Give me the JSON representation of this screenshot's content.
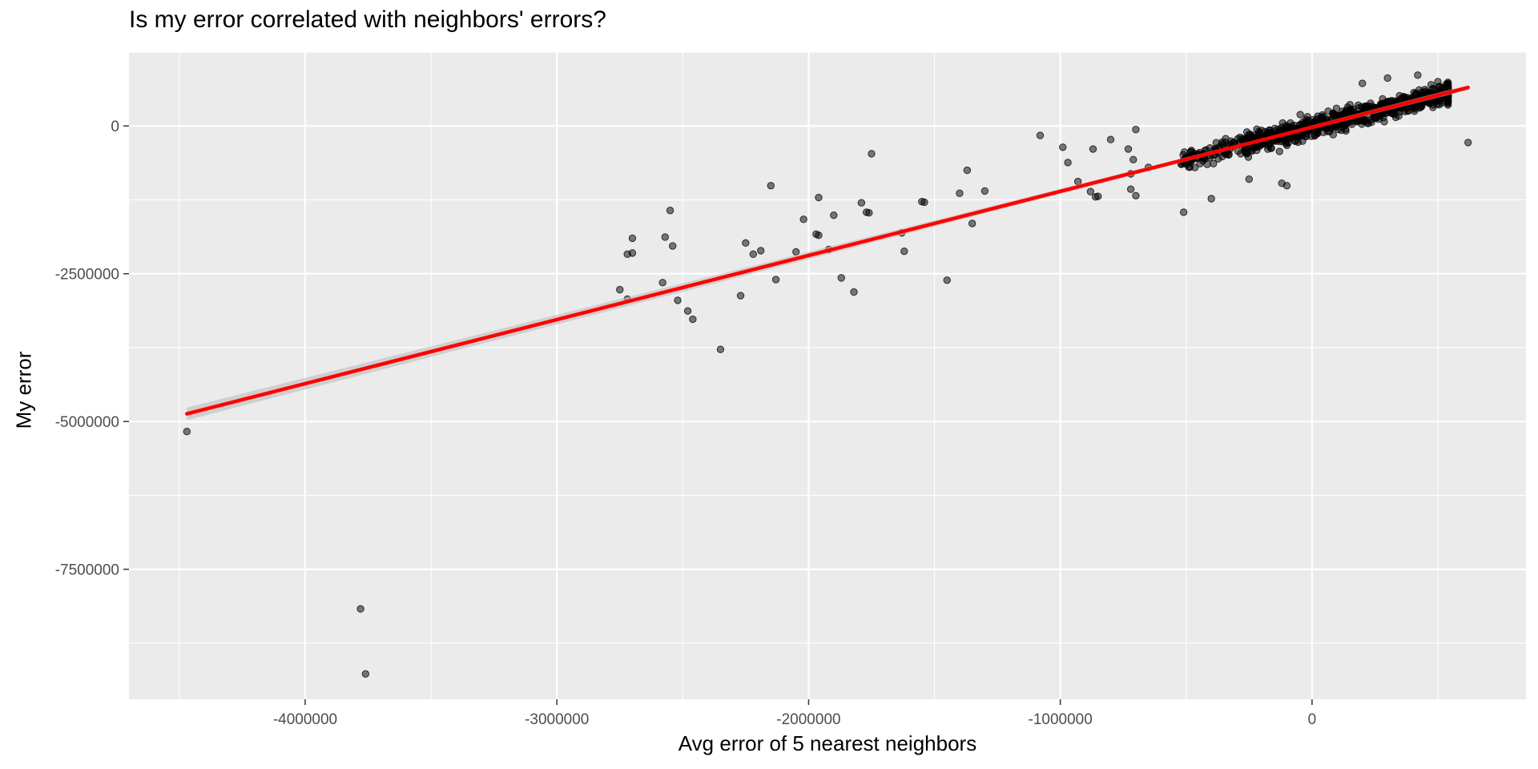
{
  "chart_data": {
    "type": "scatter",
    "title": "Is my error correlated with neighbors' errors?",
    "xlabel": "Avg error of 5 nearest neighbors",
    "ylabel": "My error",
    "xlim": [
      -4700000,
      850000
    ],
    "ylim": [
      -9700000,
      1250000
    ],
    "x_ticks": [
      -4000000,
      -3000000,
      -2000000,
      -1000000,
      0
    ],
    "x_tick_labels": [
      "-4000000",
      "-3000000",
      "-2000000",
      "-1000000",
      "0"
    ],
    "y_ticks": [
      0,
      -2500000,
      -5000000,
      -7500000
    ],
    "y_tick_labels": [
      "0",
      "-2500000",
      "-5000000",
      "-7500000"
    ],
    "grid": true,
    "legend": "none",
    "colors": {
      "panel": "#ebebeb",
      "grid": "#ffffff",
      "point": "#000000",
      "fit_line": "#ff0000",
      "confidence_band": "#bdbdbd"
    },
    "fit_line": {
      "x": [
        -4470000,
        620000
      ],
      "y": [
        -4870000,
        650000
      ]
    },
    "dense_cluster": {
      "x_range": [
        -520000,
        620000
      ],
      "y_range": [
        -900000,
        900000
      ],
      "count": 900
    },
    "points": [
      [
        -4470000,
        -5170000
      ],
      [
        -3780000,
        -8170000
      ],
      [
        -3760000,
        -9270000
      ],
      [
        -2750000,
        -2770000
      ],
      [
        -2720000,
        -2170000
      ],
      [
        -2720000,
        -2930000
      ],
      [
        -2700000,
        -1900000
      ],
      [
        -2700000,
        -2150000
      ],
      [
        -2580000,
        -2650000
      ],
      [
        -2570000,
        -1880000
      ],
      [
        -2550000,
        -1430000
      ],
      [
        -2540000,
        -2030000
      ],
      [
        -2520000,
        -2950000
      ],
      [
        -2480000,
        -3130000
      ],
      [
        -2460000,
        -3270000
      ],
      [
        -2350000,
        -3780000
      ],
      [
        -2270000,
        -2870000
      ],
      [
        -2250000,
        -1980000
      ],
      [
        -2220000,
        -2170000
      ],
      [
        -2190000,
        -2110000
      ],
      [
        -2150000,
        -1010000
      ],
      [
        -2130000,
        -2600000
      ],
      [
        -2050000,
        -2130000
      ],
      [
        -2020000,
        -1580000
      ],
      [
        -1970000,
        -1830000
      ],
      [
        -1960000,
        -1210000
      ],
      [
        -1960000,
        -1850000
      ],
      [
        -1920000,
        -2090000
      ],
      [
        -1900000,
        -1510000
      ],
      [
        -1870000,
        -2570000
      ],
      [
        -1820000,
        -2810000
      ],
      [
        -1790000,
        -1300000
      ],
      [
        -1770000,
        -1460000
      ],
      [
        -1760000,
        -1470000
      ],
      [
        -1750000,
        -470000
      ],
      [
        -1630000,
        -1810000
      ],
      [
        -1620000,
        -2120000
      ],
      [
        -1550000,
        -1280000
      ],
      [
        -1540000,
        -1290000
      ],
      [
        -1450000,
        -2610000
      ],
      [
        -1400000,
        -1140000
      ],
      [
        -1370000,
        -750000
      ],
      [
        -1350000,
        -1650000
      ],
      [
        -1300000,
        -1100000
      ],
      [
        -1080000,
        -160000
      ],
      [
        -990000,
        -360000
      ],
      [
        -970000,
        -620000
      ],
      [
        -930000,
        -940000
      ],
      [
        -880000,
        -1110000
      ],
      [
        -860000,
        -1200000
      ],
      [
        -850000,
        -1190000
      ],
      [
        -870000,
        -390000
      ],
      [
        -800000,
        -230000
      ],
      [
        -730000,
        -390000
      ],
      [
        -720000,
        -810000
      ],
      [
        -720000,
        -1070000
      ],
      [
        -710000,
        -570000
      ],
      [
        -700000,
        -1180000
      ],
      [
        -700000,
        -60000
      ],
      [
        -650000,
        -700000
      ],
      [
        -510000,
        -1460000
      ],
      [
        -400000,
        -1230000
      ],
      [
        -250000,
        -900000
      ],
      [
        -120000,
        -970000
      ],
      [
        -100000,
        -1010000
      ],
      [
        620000,
        -280000
      ],
      [
        500000,
        750000
      ],
      [
        420000,
        860000
      ],
      [
        300000,
        810000
      ],
      [
        200000,
        720000
      ]
    ]
  }
}
